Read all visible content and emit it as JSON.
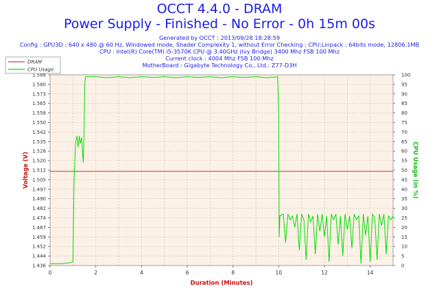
{
  "header": {
    "title": "OCCT 4.4.0 - DRAM",
    "subtitle": "Power Supply - Finished - No Error - 0h 15m 00s",
    "info_lines": [
      "Generated by OCCT : 2013/09/28 18:28:59",
      "Config : GPU3D : 640 x 480 @ 60 Hz, Windowed mode, Shader Complexity 1, without Error Checking ; CPU:Linpack : 64bits mode, 12806.1MB",
      "CPU : Intel(R) Core(TM) i5-3570K CPU @ 3.40GHz (Ivy Bridge) 3400 Mhz FSB 100 Mhz",
      "Current clock : 4004 Mhz FSB 100 Mhz",
      "MotherBoard : Gigabyte Technology Co., Ltd.: Z77-D3H"
    ]
  },
  "chart_data": {
    "type": "line",
    "xlabel": "Duration (Minutes)",
    "ylabel": "Voltage (V)",
    "y2label": "CPU Usage (in %)",
    "xlim": [
      0,
      15
    ],
    "ylim": [
      1.436,
      1.59
    ],
    "y2lim": [
      0,
      100
    ],
    "x_ticks": [
      0,
      2,
      4,
      6,
      8,
      10,
      12,
      14
    ],
    "y_ticks": [
      "1.436",
      "1.444",
      "1.452",
      "1.459",
      "1.467",
      "1.474",
      "1.482",
      "1.490",
      "1.497",
      "1.505",
      "1.512",
      "1.520",
      "1.528",
      "1.535",
      "1.542",
      "1.550",
      "1.558",
      "1.565",
      "1.573",
      "1.580",
      "1.588"
    ],
    "y2_ticks": [
      0,
      5,
      10,
      15,
      20,
      25,
      30,
      35,
      40,
      45,
      50,
      55,
      60,
      65,
      70,
      75,
      80,
      85,
      90,
      95,
      100
    ],
    "grid": true,
    "legend_position": "top-left",
    "series": [
      {
        "name": "DRAM",
        "axis": "left",
        "color": "#c04040",
        "points": [
          [
            0,
            1.512
          ],
          [
            15,
            1.512
          ]
        ]
      },
      {
        "name": "CPU Usage",
        "axis": "right",
        "color": "#00dd00",
        "points": [
          [
            0.0,
            1
          ],
          [
            0.5,
            1
          ],
          [
            0.9,
            1.5
          ],
          [
            1.0,
            2
          ],
          [
            1.05,
            45
          ],
          [
            1.12,
            65
          ],
          [
            1.18,
            68
          ],
          [
            1.22,
            62
          ],
          [
            1.28,
            68
          ],
          [
            1.32,
            64
          ],
          [
            1.38,
            67
          ],
          [
            1.42,
            60
          ],
          [
            1.45,
            54
          ],
          [
            1.48,
            66
          ],
          [
            1.52,
            96
          ],
          [
            1.55,
            99
          ],
          [
            2.0,
            99
          ],
          [
            2.5,
            98.5
          ],
          [
            3.0,
            99
          ],
          [
            3.5,
            98.5
          ],
          [
            4.0,
            99
          ],
          [
            4.5,
            98.6
          ],
          [
            5.0,
            99
          ],
          [
            5.5,
            98.5
          ],
          [
            6.0,
            99
          ],
          [
            6.5,
            98.6
          ],
          [
            7.0,
            99
          ],
          [
            7.5,
            98.5
          ],
          [
            8.0,
            99
          ],
          [
            8.5,
            98.6
          ],
          [
            9.0,
            99
          ],
          [
            9.5,
            98.5
          ],
          [
            9.95,
            99
          ],
          [
            10.0,
            80
          ],
          [
            10.02,
            15
          ],
          [
            10.05,
            26
          ],
          [
            10.2,
            27
          ],
          [
            10.3,
            12
          ],
          [
            10.4,
            27
          ],
          [
            10.5,
            24
          ],
          [
            10.6,
            26
          ],
          [
            10.7,
            20
          ],
          [
            10.8,
            27
          ],
          [
            10.9,
            8
          ],
          [
            11.0,
            27
          ],
          [
            11.1,
            24
          ],
          [
            11.2,
            3
          ],
          [
            11.3,
            27
          ],
          [
            11.4,
            23
          ],
          [
            11.5,
            26
          ],
          [
            11.6,
            6
          ],
          [
            11.7,
            27
          ],
          [
            11.8,
            18
          ],
          [
            11.9,
            27
          ],
          [
            12.0,
            15
          ],
          [
            12.1,
            26
          ],
          [
            12.2,
            2
          ],
          [
            12.3,
            27
          ],
          [
            12.4,
            24
          ],
          [
            12.5,
            27
          ],
          [
            12.6,
            11
          ],
          [
            12.7,
            26
          ],
          [
            12.8,
            5
          ],
          [
            12.9,
            27
          ],
          [
            13.0,
            19
          ],
          [
            13.1,
            26
          ],
          [
            13.2,
            9
          ],
          [
            13.3,
            27
          ],
          [
            13.4,
            24
          ],
          [
            13.5,
            26
          ],
          [
            13.6,
            1
          ],
          [
            13.7,
            27
          ],
          [
            13.8,
            16
          ],
          [
            13.9,
            26
          ],
          [
            14.0,
            2
          ],
          [
            14.1,
            27
          ],
          [
            14.2,
            25
          ],
          [
            14.3,
            3
          ],
          [
            14.4,
            27
          ],
          [
            14.5,
            21
          ],
          [
            14.6,
            27
          ],
          [
            14.7,
            6
          ],
          [
            14.8,
            26
          ],
          [
            14.9,
            24
          ],
          [
            15.0,
            26
          ]
        ]
      }
    ]
  }
}
